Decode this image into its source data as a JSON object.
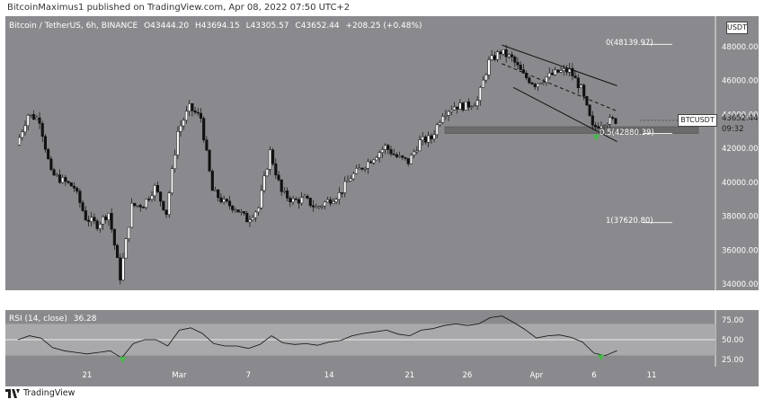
{
  "header": {
    "publisher_line": "BitcoinMaximus1 published on TradingView.com, Apr 08, 2022 07:50 UTC+2"
  },
  "symbol": {
    "title": "Bitcoin / TetherUS, 6h, BINANCE",
    "open": "O43444.20",
    "high": "H43694.15",
    "low": "L43305.57",
    "close": "C43652.44",
    "change": "+208.25 (+0.48%)",
    "ticker_badge": "BTCUSDT",
    "last_price": "43652.44",
    "countdown": "09:32",
    "currency_badge": "USDT"
  },
  "indicator": {
    "name": "RSI (14, close)",
    "value": "36.28"
  },
  "fib_labels": {
    "top": "0(48139.97)",
    "mid": "0.5(42880.39)",
    "bottom": "1(37620.80)"
  },
  "footer": {
    "brand": "TradingView"
  },
  "colors": {
    "background": "#8a8a8e",
    "candle_up": "#ffffff",
    "candle_down": "#111111",
    "support_zone": "#6b6b6b",
    "rsi_band": "#a9a9ab",
    "signal_green": "#49b84b"
  },
  "chart_data": [
    {
      "type": "candlestick",
      "title": "Bitcoin / TetherUS, 6h, BINANCE",
      "x_ticks": [
        "21",
        "Mar",
        "7",
        "14",
        "21",
        "26",
        "Apr",
        "6",
        "11"
      ],
      "y_ticks": [
        "48000.00",
        "46000.00",
        "44000.00",
        "42000.00",
        "40000.00",
        "38000.00",
        "36000.00",
        "34000.00"
      ],
      "ylim": [
        33400,
        49200
      ],
      "close_path_approx": [
        [
          "Feb 15",
          42200
        ],
        [
          "Feb 16",
          44000
        ],
        [
          "Feb 17",
          43700
        ],
        [
          "Feb 18",
          40500
        ],
        [
          "Feb 19",
          40100
        ],
        [
          "Feb 20",
          39700
        ],
        [
          "Feb 21",
          37900
        ],
        [
          "Feb 22",
          37500
        ],
        [
          "Feb 23",
          38200
        ],
        [
          "Feb 24",
          34400
        ],
        [
          "Feb 25",
          38600
        ],
        [
          "Feb 26",
          38700
        ],
        [
          "Feb 27",
          39700
        ],
        [
          "Feb 28",
          38200
        ],
        [
          "Mar 1",
          43000
        ],
        [
          "Mar 2",
          44400
        ],
        [
          "Mar 3",
          43800
        ],
        [
          "Mar 4",
          39500
        ],
        [
          "Mar 5",
          38800
        ],
        [
          "Mar 6",
          38500
        ],
        [
          "Mar 7",
          37800
        ],
        [
          "Mar 8",
          38500
        ],
        [
          "Mar 9",
          41800
        ],
        [
          "Mar 10",
          39400
        ],
        [
          "Mar 11",
          38900
        ],
        [
          "Mar 12",
          39000
        ],
        [
          "Mar 13",
          38500
        ],
        [
          "Mar 14",
          38900
        ],
        [
          "Mar 15",
          39300
        ],
        [
          "Mar 16",
          40300
        ],
        [
          "Mar 17",
          40900
        ],
        [
          "Mar 18",
          41500
        ],
        [
          "Mar 19",
          42100
        ],
        [
          "Mar 20",
          41500
        ],
        [
          "Mar 21",
          41200
        ],
        [
          "Mar 22",
          42400
        ],
        [
          "Mar 23",
          42600
        ],
        [
          "Mar 24",
          44100
        ],
        [
          "Mar 25",
          44500
        ],
        [
          "Mar 26",
          44500
        ],
        [
          "Mar 27",
          44800
        ],
        [
          "Mar 28",
          47100
        ],
        [
          "Mar 29",
          47700
        ],
        [
          "Mar 30",
          47300
        ],
        [
          "Mar 31",
          46300
        ],
        [
          "Apr 1",
          45800
        ],
        [
          "Apr 2",
          46200
        ],
        [
          "Apr 3",
          46500
        ],
        [
          "Apr 4",
          46600
        ],
        [
          "Apr 5",
          45500
        ],
        [
          "Apr 6",
          43200
        ],
        [
          "Apr 7",
          43600
        ],
        [
          "Apr 8",
          43652.44
        ]
      ],
      "fibonacci": [
        {
          "level": "0",
          "price": 48139.97
        },
        {
          "level": "0.5",
          "price": 42880.39
        },
        {
          "level": "1",
          "price": 37620.8
        }
      ],
      "support_zone": [
        42880,
        43280
      ],
      "descending_channel": {
        "upper": [
          [
            "Mar 29",
            48100
          ],
          [
            "Apr 8",
            45700
          ]
        ],
        "middle": [
          [
            "Mar 29",
            47000
          ],
          [
            "Apr 8",
            44200
          ]
        ],
        "lower": [
          [
            "Mar 30",
            45600
          ],
          [
            "Apr 8",
            42400
          ]
        ]
      }
    },
    {
      "type": "line",
      "title": "RSI (14, close)",
      "y_ticks": [
        "75.00",
        "50.00",
        "25.00"
      ],
      "ylim": [
        15,
        95
      ],
      "band": [
        30,
        70
      ],
      "midline": 50,
      "values": [
        [
          "Feb 15",
          50
        ],
        [
          "Feb 16",
          55
        ],
        [
          "Feb 17",
          52
        ],
        [
          "Feb 18",
          40
        ],
        [
          "Feb 19",
          36
        ],
        [
          "Feb 20",
          34
        ],
        [
          "Feb 21",
          32
        ],
        [
          "Feb 22",
          34
        ],
        [
          "Feb 23",
          36
        ],
        [
          "Feb 24",
          27
        ],
        [
          "Feb 25",
          45
        ],
        [
          "Feb 26",
          50
        ],
        [
          "Feb 27",
          50
        ],
        [
          "Feb 28",
          42
        ],
        [
          "Mar 1",
          62
        ],
        [
          "Mar 2",
          65
        ],
        [
          "Mar 3",
          58
        ],
        [
          "Mar 4",
          45
        ],
        [
          "Mar 5",
          42
        ],
        [
          "Mar 6",
          42
        ],
        [
          "Mar 7",
          39
        ],
        [
          "Mar 8",
          44
        ],
        [
          "Mar 9",
          55
        ],
        [
          "Mar 10",
          46
        ],
        [
          "Mar 11",
          44
        ],
        [
          "Mar 12",
          45
        ],
        [
          "Mar 13",
          43
        ],
        [
          "Mar 14",
          47
        ],
        [
          "Mar 15",
          49
        ],
        [
          "Mar 16",
          55
        ],
        [
          "Mar 17",
          58
        ],
        [
          "Mar 18",
          60
        ],
        [
          "Mar 19",
          62
        ],
        [
          "Mar 20",
          57
        ],
        [
          "Mar 21",
          55
        ],
        [
          "Mar 22",
          62
        ],
        [
          "Mar 23",
          64
        ],
        [
          "Mar 24",
          68
        ],
        [
          "Mar 25",
          70
        ],
        [
          "Mar 26",
          68
        ],
        [
          "Mar 27",
          70
        ],
        [
          "Mar 28",
          78
        ],
        [
          "Mar 29",
          80
        ],
        [
          "Mar 30",
          72
        ],
        [
          "Mar 31",
          63
        ],
        [
          "Apr 1",
          52
        ],
        [
          "Apr 2",
          55
        ],
        [
          "Apr 3",
          56
        ],
        [
          "Apr 4",
          53
        ],
        [
          "Apr 5",
          47
        ],
        [
          "Apr 6",
          33
        ],
        [
          "Apr 7",
          30
        ],
        [
          "Apr 8",
          36.28
        ]
      ]
    }
  ]
}
